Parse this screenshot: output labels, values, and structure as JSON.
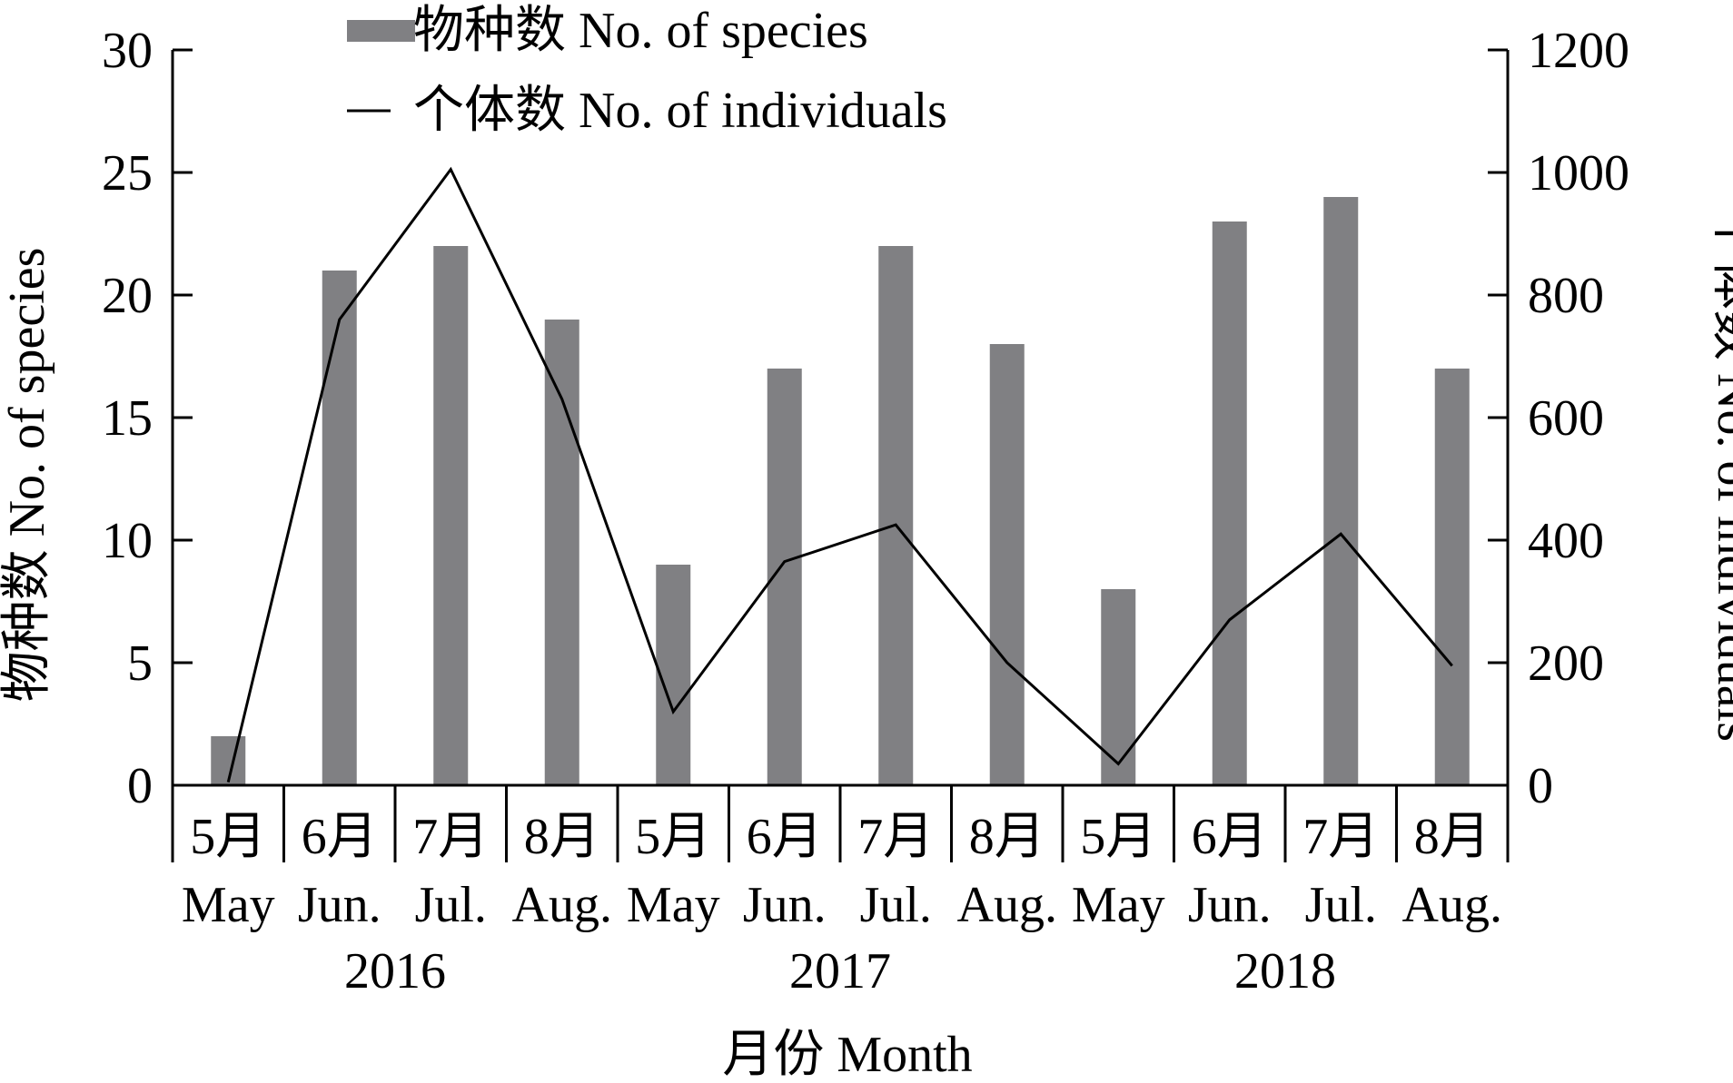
{
  "chart_data": {
    "type": "bar+line",
    "title": "",
    "xlabel": "月份 Month",
    "ylabel_left": "物种数 No. of species",
    "ylabel_right": "个体数 No. of individuals",
    "ylim_left": [
      0,
      30
    ],
    "ylim_right": [
      0,
      1200
    ],
    "yticks_left": [
      "0",
      "5",
      "10",
      "15",
      "20",
      "25",
      "30"
    ],
    "yticks_right": [
      "0",
      "200",
      "400",
      "600",
      "800",
      "1000",
      "1200"
    ],
    "grid": false,
    "legend_position": "top",
    "categories": [
      {
        "cn": "5月",
        "en": "May"
      },
      {
        "cn": "6月",
        "en": "Jun."
      },
      {
        "cn": "7月",
        "en": "Jul."
      },
      {
        "cn": "8月",
        "en": "Aug."
      },
      {
        "cn": "5月",
        "en": "May"
      },
      {
        "cn": "6月",
        "en": "Jun."
      },
      {
        "cn": "7月",
        "en": "Jul."
      },
      {
        "cn": "8月",
        "en": "Aug."
      },
      {
        "cn": "5月",
        "en": "May"
      },
      {
        "cn": "6月",
        "en": "Jun."
      },
      {
        "cn": "7月",
        "en": "Jul."
      },
      {
        "cn": "8月",
        "en": "Aug."
      }
    ],
    "years": [
      "2016",
      "2017",
      "2018"
    ],
    "series": [
      {
        "name": "物种数 No. of species",
        "type": "bar",
        "axis": "left",
        "color": "#808083",
        "values": [
          2,
          21,
          22,
          19,
          9,
          17,
          22,
          18,
          8,
          23,
          24,
          17
        ]
      },
      {
        "name": "个体数 No. of individuals",
        "type": "line",
        "axis": "right",
        "color": "#000000",
        "values": [
          5,
          760,
          1005,
          630,
          120,
          365,
          425,
          200,
          35,
          270,
          410,
          195
        ]
      }
    ]
  }
}
